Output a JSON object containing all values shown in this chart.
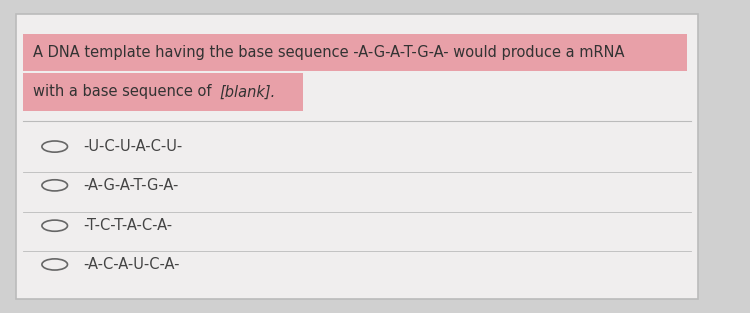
{
  "background_color": "#d0d0d0",
  "card_color": "#f0eeee",
  "highlight_color": "#e8a0a8",
  "question_line1": "A DNA template having the base sequence -A-G-A-T-G-A- would produce a mRNA",
  "question_line2": "with a base sequence of ",
  "blank_text": "[blank].",
  "options": [
    "-U-C-U-A-C-U-",
    "-A-G-A-T-G-A-",
    "-T-C-T-A-C-A-",
    "-A-C-A-U-C-A-"
  ],
  "text_color": "#333333",
  "option_text_color": "#444444",
  "font_size_question": 10.5,
  "font_size_options": 10.5,
  "border_color": "#bbbbbb"
}
